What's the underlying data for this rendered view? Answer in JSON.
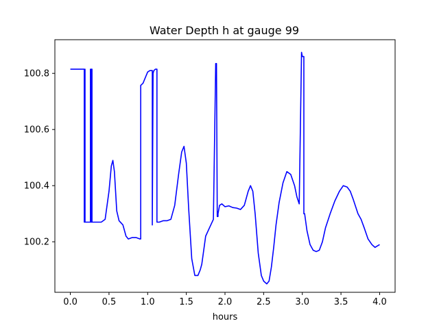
{
  "chart_data": {
    "type": "line",
    "title": "Water Depth h at gauge 99",
    "xlabel": "hours",
    "ylabel": "",
    "xlim": [
      -0.2,
      4.2
    ],
    "ylim": [
      100.02,
      100.92
    ],
    "x_ticks": [
      0.0,
      0.5,
      1.0,
      1.5,
      2.0,
      2.5,
      3.0,
      3.5,
      4.0
    ],
    "x_tick_labels": [
      "0.0",
      "0.5",
      "1.0",
      "1.5",
      "2.0",
      "2.5",
      "3.0",
      "3.5",
      "4.0"
    ],
    "y_ticks": [
      100.2,
      100.4,
      100.6,
      100.8
    ],
    "y_tick_labels": [
      "100.2",
      "100.4",
      "100.6",
      "100.8"
    ],
    "grid": false,
    "series": [
      {
        "color": "#0000ff",
        "x": [
          0.0,
          0.18,
          0.18,
          0.19,
          0.19,
          0.26,
          0.26,
          0.27,
          0.27,
          0.28,
          0.28,
          0.4,
          0.45,
          0.5,
          0.53,
          0.55,
          0.57,
          0.6,
          0.63,
          0.68,
          0.72,
          0.75,
          0.8,
          0.85,
          0.9,
          0.91,
          0.91,
          0.94,
          0.97,
          1.0,
          1.03,
          1.05,
          1.06,
          1.06,
          1.07,
          1.08,
          1.1,
          1.12,
          1.12,
          1.15,
          1.2,
          1.25,
          1.3,
          1.35,
          1.4,
          1.44,
          1.47,
          1.5,
          1.53,
          1.57,
          1.61,
          1.65,
          1.68,
          1.7,
          1.72,
          1.75,
          1.8,
          1.85,
          1.88,
          1.89,
          1.9,
          1.91,
          1.91,
          1.93,
          1.96,
          2.0,
          2.05,
          2.1,
          2.15,
          2.2,
          2.25,
          2.3,
          2.33,
          2.36,
          2.39,
          2.43,
          2.47,
          2.5,
          2.54,
          2.57,
          2.6,
          2.63,
          2.66,
          2.7,
          2.75,
          2.8,
          2.85,
          2.9,
          2.93,
          2.96,
          2.99,
          2.99,
          3.0,
          3.01,
          3.02,
          3.02,
          3.03,
          3.06,
          3.1,
          3.14,
          3.18,
          3.22,
          3.26,
          3.3,
          3.36,
          3.42,
          3.48,
          3.53,
          3.58,
          3.62,
          3.66,
          3.72,
          3.76,
          3.8,
          3.85,
          3.9,
          3.94,
          3.97,
          4.0
        ],
        "y": [
          100.815,
          100.815,
          100.27,
          100.815,
          100.27,
          100.27,
          100.815,
          100.27,
          100.815,
          100.815,
          100.27,
          100.27,
          100.28,
          100.38,
          100.47,
          100.49,
          100.45,
          100.31,
          100.275,
          100.26,
          100.22,
          100.21,
          100.215,
          100.215,
          100.21,
          100.21,
          100.757,
          100.765,
          100.785,
          100.805,
          100.81,
          100.81,
          100.81,
          100.26,
          100.8,
          100.81,
          100.815,
          100.815,
          100.27,
          100.27,
          100.275,
          100.275,
          100.28,
          100.33,
          100.44,
          100.52,
          100.54,
          100.48,
          100.32,
          100.14,
          100.08,
          100.08,
          100.1,
          100.12,
          100.16,
          100.22,
          100.25,
          100.28,
          100.835,
          100.835,
          100.29,
          100.29,
          100.3,
          100.33,
          100.335,
          100.325,
          100.328,
          100.322,
          100.32,
          100.315,
          100.33,
          100.38,
          100.4,
          100.38,
          100.3,
          100.16,
          100.08,
          100.06,
          100.05,
          100.06,
          100.11,
          100.18,
          100.26,
          100.34,
          100.41,
          100.45,
          100.44,
          100.4,
          100.36,
          100.335,
          100.875,
          100.875,
          100.86,
          100.86,
          100.86,
          100.3,
          100.3,
          100.24,
          100.19,
          100.17,
          100.165,
          100.17,
          100.2,
          100.25,
          100.3,
          100.345,
          100.38,
          100.4,
          100.395,
          100.38,
          100.35,
          100.3,
          100.28,
          100.25,
          100.21,
          100.19,
          100.18,
          100.185,
          100.19
        ]
      }
    ]
  }
}
